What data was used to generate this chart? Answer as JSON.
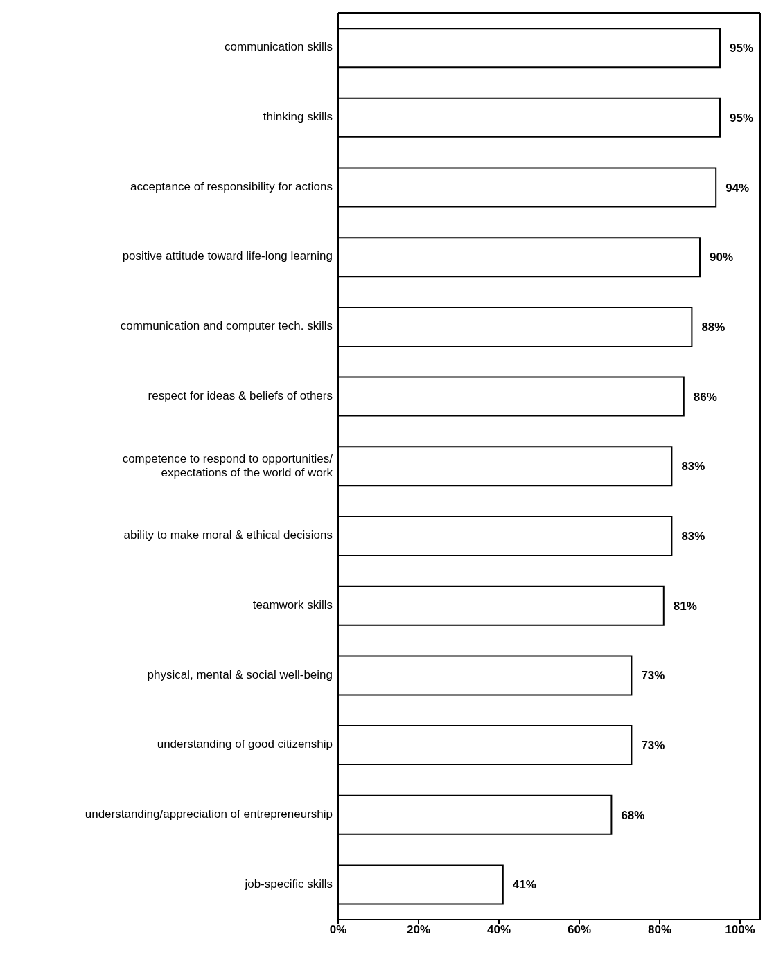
{
  "chart_data": {
    "type": "bar",
    "orientation": "horizontal",
    "categories": [
      "communication skills",
      "thinking skills",
      "acceptance of responsibility for actions",
      "positive attitude toward life-long learning",
      "communication and computer tech. skills",
      "respect for ideas & beliefs of others",
      "competence to respond to opportunities/\nexpectations of the world of work",
      "ability to make moral & ethical decisions",
      "teamwork skills",
      "physical, mental & social well-being",
      "understanding of good citizenship",
      "understanding/appreciation of entrepreneurship",
      "job-specific skills"
    ],
    "values": [
      95,
      95,
      94,
      90,
      88,
      86,
      83,
      83,
      81,
      73,
      73,
      68,
      41
    ],
    "value_labels": [
      "95%",
      "95%",
      "94%",
      "90%",
      "88%",
      "86%",
      "83%",
      "83%",
      "81%",
      "73%",
      "73%",
      "68%",
      "41%"
    ],
    "color": "#ffffff",
    "xlim": [
      0,
      105
    ],
    "xticks": [
      {
        "value": 0,
        "label": "0%"
      },
      {
        "value": 20,
        "label": "20%"
      },
      {
        "value": 40,
        "label": "40%"
      },
      {
        "value": 60,
        "label": "60%"
      },
      {
        "value": 80,
        "label": "80%"
      },
      {
        "value": 100,
        "label": "100%"
      }
    ],
    "grid": false,
    "legend": false
  }
}
